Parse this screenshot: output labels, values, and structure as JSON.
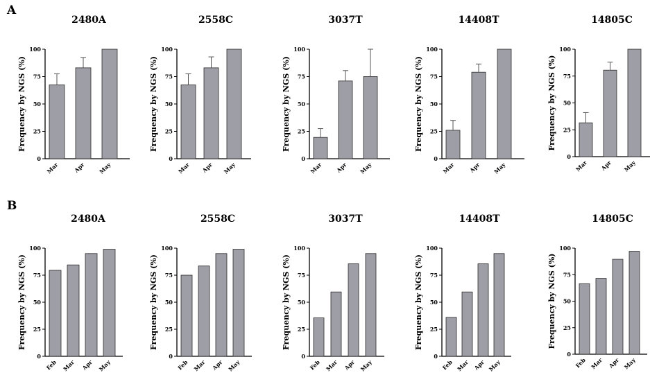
{
  "panels": [
    {
      "letter": "A"
    },
    {
      "letter": "B"
    }
  ],
  "style": {
    "bar_fill": "#9e9ea6",
    "bar_stroke": "#2a2a2a",
    "axis_color": "#000000"
  },
  "chart_data": [
    {
      "panel": "A",
      "type": "bar",
      "title": "2480A",
      "ylabel": "Frequency by NGS (%)",
      "xlabel": "",
      "categories": [
        "Mar",
        "Apr",
        "May"
      ],
      "values": [
        67.5,
        83,
        100
      ],
      "error": [
        10,
        9.5,
        0
      ],
      "ylim": [
        0,
        100
      ],
      "yticks": [
        0,
        25,
        50,
        75,
        100
      ]
    },
    {
      "panel": "A",
      "type": "bar",
      "title": "2558C",
      "ylabel": "Frequency by NGS (%)",
      "xlabel": "",
      "categories": [
        "Mar",
        "Apr",
        "May"
      ],
      "values": [
        67.5,
        83,
        100
      ],
      "error": [
        10,
        10,
        0
      ],
      "ylim": [
        0,
        100
      ],
      "yticks": [
        0,
        25,
        50,
        75,
        100
      ]
    },
    {
      "panel": "A",
      "type": "bar",
      "title": "3037T",
      "ylabel": "Frequency by NGS (%)",
      "xlabel": "",
      "categories": [
        "Mar",
        "Apr",
        "May"
      ],
      "values": [
        19.5,
        71,
        75
      ],
      "error": [
        8,
        9.5,
        25
      ],
      "ylim": [
        0,
        100
      ],
      "yticks": [
        0,
        25,
        50,
        75,
        100
      ]
    },
    {
      "panel": "A",
      "type": "bar",
      "title": "14408T",
      "ylabel": "Frequency by NGS (%)",
      "xlabel": "",
      "categories": [
        "Mar",
        "Apr",
        "May"
      ],
      "values": [
        26,
        79,
        100
      ],
      "error": [
        9,
        7.5,
        0
      ],
      "ylim": [
        0,
        100
      ],
      "yticks": [
        0,
        25,
        50,
        75,
        100
      ]
    },
    {
      "panel": "A",
      "type": "bar",
      "title": "14805C",
      "ylabel": "Frequency by NGS (%)",
      "xlabel": "",
      "categories": [
        "Mar",
        "Apr",
        "May"
      ],
      "values": [
        31.5,
        80.5,
        100
      ],
      "error": [
        9.5,
        7.5,
        0
      ],
      "ylim": [
        0,
        100
      ],
      "yticks": [
        0,
        25,
        50,
        75,
        100
      ]
    },
    {
      "panel": "B",
      "type": "bar",
      "title": "2480A",
      "ylabel": "Frequency by NGS (%)",
      "xlabel": "",
      "categories": [
        "Feb",
        "Mar",
        "Apr",
        "May"
      ],
      "values": [
        79.5,
        84.5,
        95,
        99
      ],
      "ylim": [
        0,
        100
      ],
      "yticks": [
        0,
        25,
        50,
        75,
        100
      ]
    },
    {
      "panel": "B",
      "type": "bar",
      "title": "2558C",
      "ylabel": "Frequency by NGS (%)",
      "xlabel": "",
      "categories": [
        "Feb",
        "Mar",
        "Apr",
        "May"
      ],
      "values": [
        75,
        83.5,
        95,
        99
      ],
      "ylim": [
        0,
        100
      ],
      "yticks": [
        0,
        25,
        50,
        75,
        100
      ]
    },
    {
      "panel": "B",
      "type": "bar",
      "title": "3037T",
      "ylabel": "Frequency by NGS (%)",
      "xlabel": "",
      "categories": [
        "Feb",
        "Mar",
        "Apr",
        "May"
      ],
      "values": [
        35.5,
        59.5,
        85.5,
        95
      ],
      "ylim": [
        0,
        100
      ],
      "yticks": [
        0,
        25,
        50,
        75,
        100
      ]
    },
    {
      "panel": "B",
      "type": "bar",
      "title": "14408T",
      "ylabel": "Frequency by NGS (%)",
      "xlabel": "",
      "categories": [
        "Feb",
        "Mar",
        "Apr",
        "May"
      ],
      "values": [
        36,
        59.5,
        85.5,
        95
      ],
      "ylim": [
        0,
        100
      ],
      "yticks": [
        0,
        25,
        50,
        75,
        100
      ]
    },
    {
      "panel": "B",
      "type": "bar",
      "title": "14805C",
      "ylabel": "Frequency by NGS (%)",
      "xlabel": "",
      "categories": [
        "Feb",
        "Mar",
        "Apr",
        "May"
      ],
      "values": [
        66.5,
        71.5,
        89.5,
        97
      ],
      "ylim": [
        0,
        100
      ],
      "yticks": [
        0,
        25,
        50,
        75,
        100
      ]
    }
  ]
}
